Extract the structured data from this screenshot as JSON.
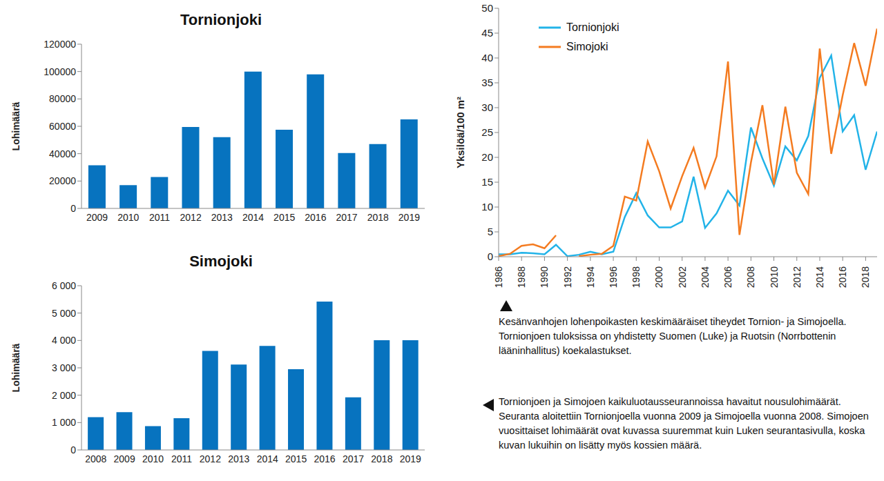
{
  "chart_data": [
    {
      "type": "bar",
      "title": "Tornionjoki",
      "y_label": "Lohimäärä",
      "categories": [
        "2009",
        "2010",
        "2011",
        "2012",
        "2013",
        "2014",
        "2015",
        "2016",
        "2017",
        "2018",
        "2019"
      ],
      "values": [
        31500,
        17000,
        23000,
        59500,
        52000,
        100000,
        57500,
        98000,
        40500,
        47000,
        65000
      ],
      "color": "#0773bf",
      "ylim": [
        0,
        120000
      ],
      "yticks": [
        0,
        20000,
        40000,
        60000,
        80000,
        100000,
        120000
      ],
      "grid": false
    },
    {
      "type": "bar",
      "title": "Simojoki",
      "y_label": "Lohimäärä",
      "categories": [
        "2008",
        "2009",
        "2010",
        "2011",
        "2012",
        "2013",
        "2014",
        "2015",
        "2016",
        "2017",
        "2018",
        "2019"
      ],
      "values": [
        1200,
        1380,
        870,
        1160,
        3620,
        3120,
        3800,
        2950,
        5420,
        1920,
        4010,
        4010
      ],
      "color": "#0773bf",
      "ylim": [
        0,
        6000
      ],
      "yticks": [
        0,
        {
          "value": 1000,
          "label": "1 000"
        },
        {
          "value": 2000,
          "label": "2 000"
        },
        {
          "value": 3000,
          "label": "3 000"
        },
        {
          "value": 4000,
          "label": "4 000"
        },
        {
          "value": 5000,
          "label": "5 000"
        },
        {
          "value": 6000,
          "label": "6 000"
        }
      ],
      "grid": false,
      "caption": "Tornionjoen ja Simojoen kaikuluotausseurannoissa havaitut nousulohimäärät.  Seuranta aloitettiin Tornionjoella vuonna 2009 ja Simojoella vuonna 2008. Simojoen vuosittaiset lohimäärät ovat kuvassa suuremmat kuin Luken seurantasivulla, koska kuvan lukuihin on lisätty myös kossien määrä."
    },
    {
      "type": "line",
      "y_label": "Yksilöä/100 m²",
      "x": [
        1986,
        1987,
        1988,
        1989,
        1990,
        1991,
        1992,
        1993,
        1994,
        1995,
        1996,
        1997,
        1998,
        1999,
        2000,
        2001,
        2002,
        2003,
        2004,
        2005,
        2006,
        2007,
        2008,
        2009,
        2010,
        2011,
        2012,
        2013,
        2014,
        2015,
        2016,
        2017,
        2018,
        2019
      ],
      "series": [
        {
          "name": "Tornionjoki",
          "color": "#22b3e8",
          "line_style": "solid",
          "values": [
            0.5,
            0.5,
            0.8,
            0.7,
            0.5,
            2.4,
            0.1,
            0.4,
            1.0,
            0.5,
            1.0,
            8.0,
            12.8,
            8.3,
            5.9,
            5.9,
            7.1,
            16.1,
            5.8,
            8.7,
            13.3,
            10.3,
            26.0,
            19.8,
            14.3,
            22.2,
            19.4,
            24.3,
            36.0,
            40.5,
            25.2,
            28.5,
            17.5,
            25.2
          ]
        },
        {
          "name": "Simojoki",
          "color": "#f47b20",
          "line_style": "solid",
          "values": [
            0.1,
            0.6,
            2.2,
            2.5,
            1.7,
            4.3,
            null,
            0.1,
            0.4,
            0.6,
            2.2,
            12.1,
            11.3,
            23.2,
            17.2,
            9.7,
            16.2,
            21.9,
            13.9,
            20.2,
            39.3,
            4.4,
            19.0,
            30.5,
            14.5,
            30.2,
            16.9,
            12.6,
            41.9,
            20.7,
            32.5,
            43.0,
            34.4,
            45.9
          ]
        }
      ],
      "xlim": [
        1986,
        2019
      ],
      "xticks": [
        1986,
        1988,
        1990,
        1992,
        1994,
        1996,
        1998,
        2000,
        2002,
        2004,
        2006,
        2008,
        2010,
        2012,
        2014,
        2016,
        2018
      ],
      "ylim": [
        0,
        50
      ],
      "yticks": [
        0,
        5,
        10,
        15,
        20,
        25,
        30,
        35,
        40,
        45,
        50
      ],
      "grid": false,
      "legend": "upper left",
      "caption": "Kesänvanhojen lohenpoikasten keskimääräiset tiheydet Tornion- ja Simojoella. Tornionjoen tuloksissa on yhdistetty Suomen (Luke) ja Ruotsin (Norrbottenin lääninhallitus) koekalastukset."
    }
  ]
}
